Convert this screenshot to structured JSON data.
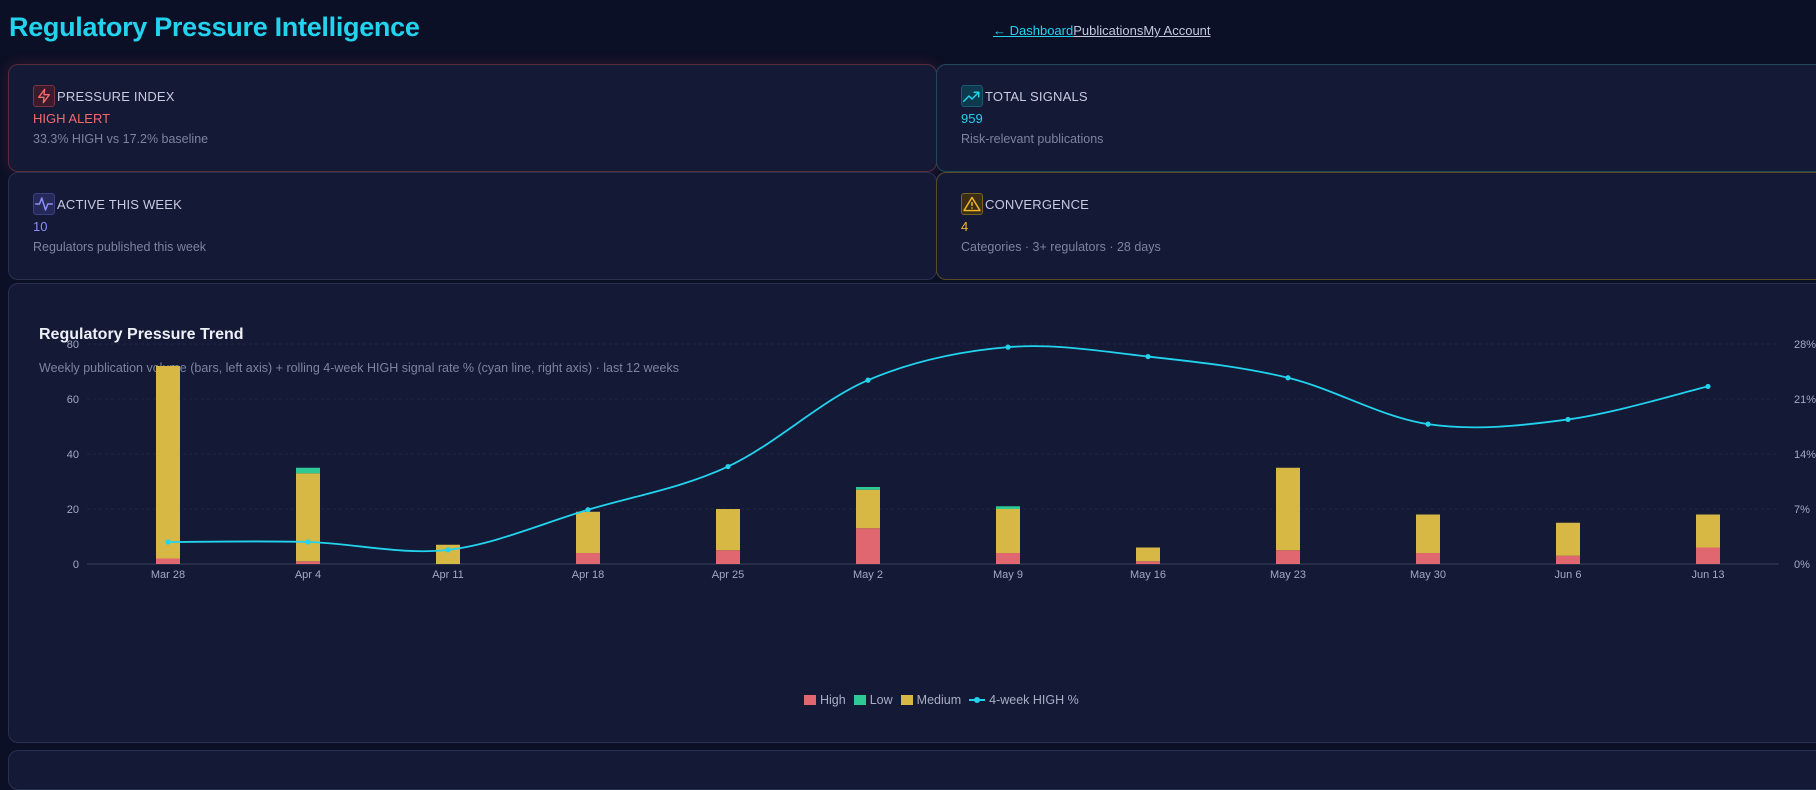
{
  "header": {
    "title": "Regulatory Pressure Intelligence",
    "nav": [
      "← Dashboard",
      "Publications",
      "My Account"
    ]
  },
  "stats": {
    "pressure": {
      "icon": "lightning-icon",
      "label": "PRESSURE INDEX",
      "value": "HIGH ALERT",
      "sub": "33.3% HIGH vs 17.2% baseline",
      "color": "#f06b6b"
    },
    "signals": {
      "icon": "trending-up-icon",
      "label": "TOTAL SIGNALS",
      "value": "959",
      "sub": "Risk-relevant publications",
      "color": "#22d3ee"
    },
    "active": {
      "icon": "activity-icon",
      "label": "ACTIVE THIS WEEK",
      "value": "10",
      "sub": "Regulators published this week",
      "color": "#8b8ff5"
    },
    "convergence": {
      "icon": "warning-icon",
      "label": "CONVERGENCE",
      "value": "4",
      "sub": "Categories · 3+ regulators · 28 days",
      "color": "#f5b829"
    }
  },
  "chart": {
    "title": "Regulatory Pressure Trend",
    "subtitle": "Weekly publication volume (bars, left axis) + rolling 4-week HIGH signal rate % (cyan line, right axis) · last 12 weeks"
  },
  "chart_data": {
    "type": "bar",
    "categories": [
      "Mar 28",
      "Apr 4",
      "Apr 11",
      "Apr 18",
      "Apr 25",
      "May 2",
      "May 9",
      "May 16",
      "May 23",
      "May 30",
      "Jun 6",
      "Jun 13"
    ],
    "series": [
      {
        "name": "High",
        "color": "#e06670",
        "values": [
          2,
          1,
          0,
          4,
          5,
          13,
          4,
          1,
          5,
          4,
          3,
          6
        ]
      },
      {
        "name": "Medium",
        "color": "#d8b844",
        "values": [
          70,
          32,
          7,
          15,
          15,
          14,
          16,
          5,
          30,
          14,
          12,
          12
        ]
      },
      {
        "name": "Low",
        "color": "#2ec994",
        "values": [
          0,
          2,
          0,
          0,
          0,
          1,
          1,
          0,
          0,
          0,
          0,
          0
        ]
      }
    ],
    "line": {
      "name": "4-week HIGH %",
      "color": "#22d3ee",
      "values": [
        2.8,
        2.8,
        1.8,
        6.9,
        12.4,
        23.4,
        27.6,
        26.4,
        23.7,
        17.8,
        18.4,
        22.6
      ]
    },
    "left_axis": {
      "ylim": [
        0,
        80
      ],
      "ticks": [
        "0",
        "20",
        "40",
        "60",
        "80"
      ]
    },
    "right_axis": {
      "ylim": [
        0,
        28
      ],
      "ticks": [
        "0%",
        "7%",
        "14%",
        "21%",
        "28%"
      ]
    },
    "legend": [
      "High",
      "Low",
      "Medium",
      "4-week HIGH %"
    ],
    "legend_position": "bottom"
  }
}
